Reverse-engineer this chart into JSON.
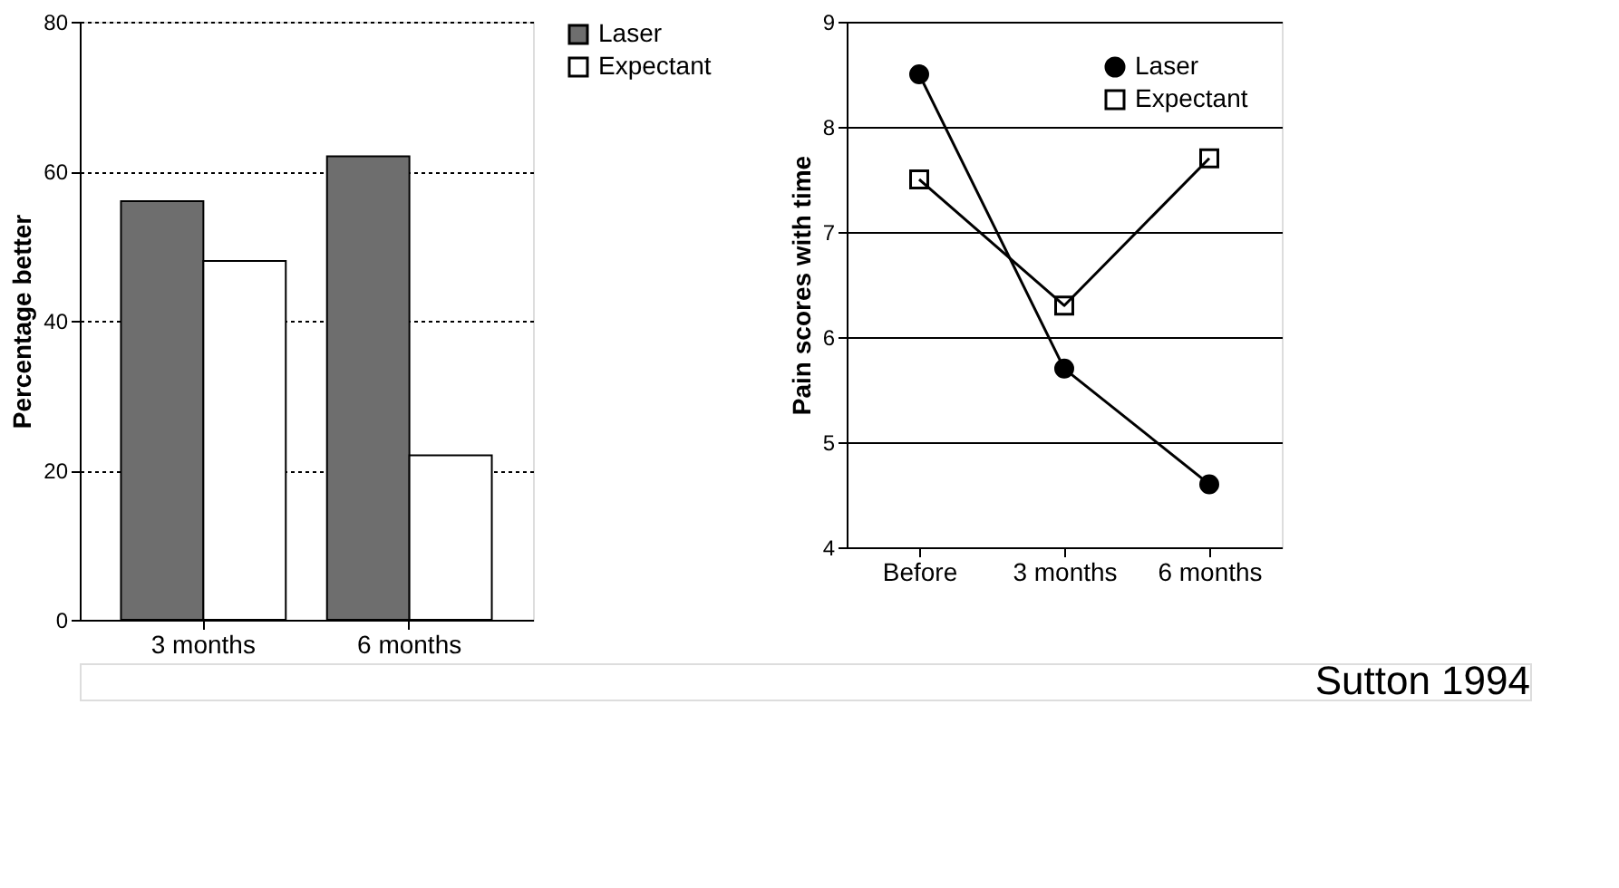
{
  "chart_data": [
    {
      "type": "bar",
      "ylabel": "Percentage better",
      "categories": [
        "3 months",
        "6 months"
      ],
      "series": [
        {
          "name": "Laser",
          "color": "#6e6e6e",
          "values": [
            56,
            62
          ]
        },
        {
          "name": "Expectant",
          "color": "#ffffff",
          "values": [
            48,
            22
          ]
        }
      ],
      "ylim": [
        0,
        80
      ],
      "yticks": [
        0,
        20,
        40,
        60,
        80
      ],
      "grid": "y",
      "line_style": "dotted",
      "legend": "right"
    },
    {
      "type": "line",
      "ylabel": "Pain scores with time",
      "categories": [
        "Before",
        "3 months",
        "6 months"
      ],
      "series": [
        {
          "name": "Laser",
          "color": "#000000",
          "marker": "circle",
          "values": [
            8.5,
            5.7,
            4.6
          ]
        },
        {
          "name": "Expectant",
          "color": "#000000",
          "marker": "square",
          "values": [
            7.5,
            6.3,
            7.7
          ]
        }
      ],
      "ylim": [
        4,
        9
      ],
      "yticks": [
        4,
        5,
        6,
        7,
        8,
        9
      ],
      "grid": "y",
      "legend": "top right",
      "annotations": [
        "Sutton 1994"
      ]
    }
  ]
}
